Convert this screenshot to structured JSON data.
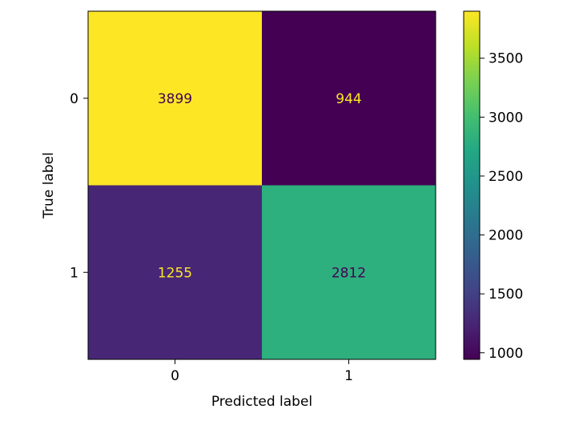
{
  "chart_data": {
    "type": "heatmap",
    "title": "",
    "xlabel": "Predicted label",
    "ylabel": "True label",
    "x_categories": [
      "0",
      "1"
    ],
    "y_categories": [
      "0",
      "1"
    ],
    "values": [
      [
        3899,
        944
      ],
      [
        1255,
        2812
      ]
    ],
    "colormap": "viridis",
    "colorbar": {
      "min": 944,
      "max": 3899,
      "ticks": [
        1000,
        1500,
        2000,
        2500,
        3000,
        3500
      ]
    },
    "cell_label_colors": {
      "dark_text": "#440154",
      "light_text": "#fde725"
    }
  }
}
